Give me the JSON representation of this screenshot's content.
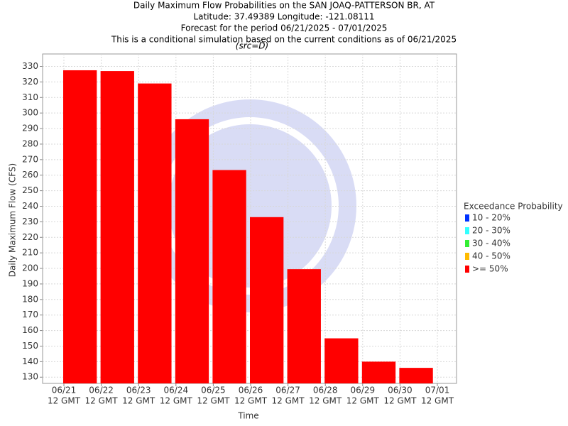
{
  "chart_data": {
    "type": "bar",
    "title": [
      "Daily Maximum Flow Probabilities on the SAN JOAQ-PATTERSON BR, AT",
      "Latitude: 37.49389 Longitude: -121.08111",
      "Forecast for the period 06/21/2025 - 07/01/2025",
      "This is a conditional simulation based on the current conditions as of 06/21/2025"
    ],
    "subtitle": "(src=D)",
    "x_label": "Time",
    "y_label": "Daily Maximum Flow (CFS)",
    "xticks": [
      [
        "06/21",
        "12 GMT"
      ],
      [
        "06/22",
        "12 GMT"
      ],
      [
        "06/23",
        "12 GMT"
      ],
      [
        "06/24",
        "12 GMT"
      ],
      [
        "06/25",
        "12 GMT"
      ],
      [
        "06/26",
        "12 GMT"
      ],
      [
        "06/27",
        "12 GMT"
      ],
      [
        "06/28",
        "12 GMT"
      ],
      [
        "06/29",
        "12 GMT"
      ],
      [
        "06/30",
        "12 GMT"
      ],
      [
        "07/01",
        "12 GMT"
      ]
    ],
    "series": [
      {
        "name": ">= 50%",
        "color": "#ff0000",
        "values": [
          327.5,
          327,
          319,
          296,
          263.3,
          233,
          199.5,
          155,
          140,
          136
        ]
      }
    ],
    "ylim": [
      126,
      338
    ],
    "yticks": [
      130,
      140,
      150,
      160,
      170,
      180,
      190,
      200,
      210,
      220,
      230,
      240,
      250,
      260,
      270,
      280,
      290,
      300,
      310,
      320,
      330
    ],
    "grid": true,
    "legend": {
      "title": "Exceedance Probability",
      "entries": [
        {
          "name": "10 - 20%",
          "color": "#0033ff"
        },
        {
          "name": "20 - 30%",
          "color": "#33ffff"
        },
        {
          "name": "30 - 40%",
          "color": "#33ee33"
        },
        {
          "name": "40 - 50%",
          "color": "#ffbb00"
        },
        {
          "name": ">= 50%",
          "color": "#ff0000"
        }
      ]
    }
  }
}
